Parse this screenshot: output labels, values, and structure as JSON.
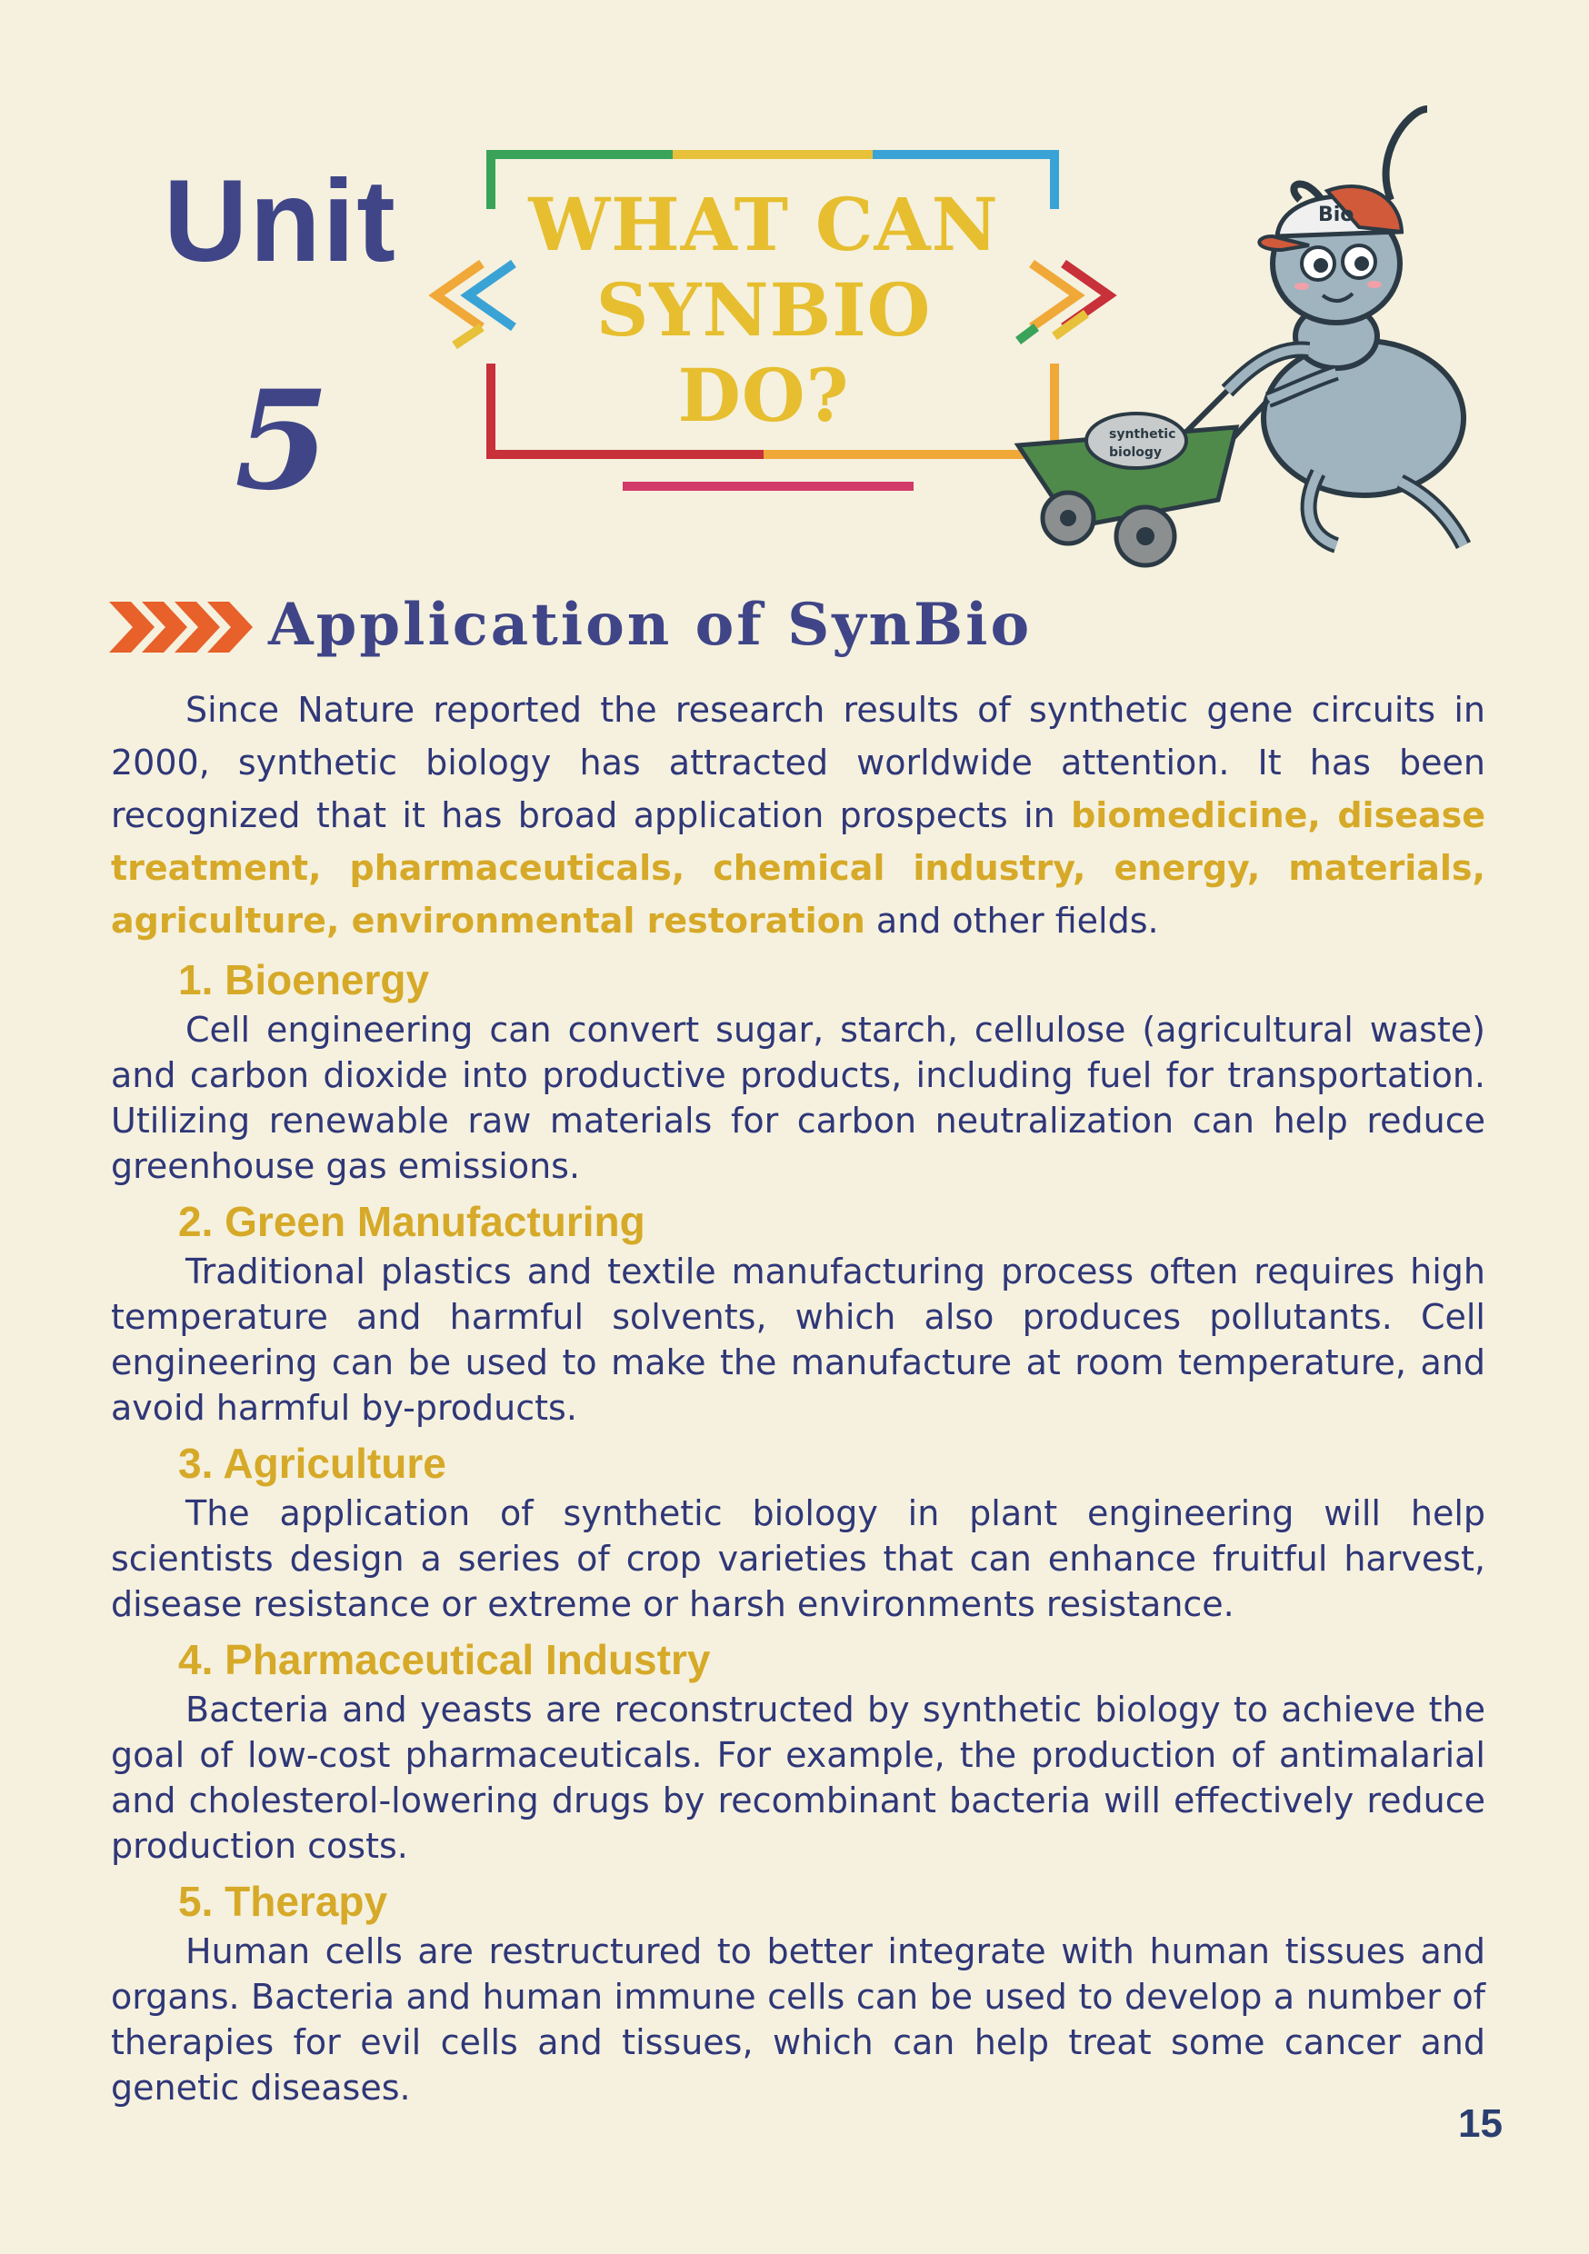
{
  "header": {
    "unit_word": "Unit",
    "unit_number": "5",
    "title_lines": [
      "WHAT CAN",
      "SYNBIO",
      "DO?"
    ],
    "mascot": {
      "cap_text": "Bio",
      "cart_text_1": "synthetic",
      "cart_text_2": "biology"
    }
  },
  "section_title": "Application of SynBio",
  "intro": {
    "text_before": "Since Nature reported the research results of synthetic gene circuits in 2000, synthetic biology has attracted worldwide attention. It has been recognized that it has broad application prospects in ",
    "highlight": "biomedicine, disease treatment, pharmaceuticals, chemical industry, energy, materials, agriculture, environmental restoration",
    "text_after": " and other fields."
  },
  "sections": [
    {
      "heading": "1. Bioenergy",
      "body": "Cell engineering can convert sugar, starch, cellulose (agricultural waste) and carbon dioxide into productive products, including fuel for transportation. Utilizing renewable raw materials for carbon neutralization can help reduce greenhouse gas emissions."
    },
    {
      "heading": "2. Green Manufacturing",
      "body": "Traditional plastics and textile manufacturing process often requires high temperature and harmful solvents, which also produces pollutants. Cell engineering can be used to make the manufacture at room temperature, and avoid harmful by-products."
    },
    {
      "heading": "3. Agriculture",
      "body": "The application of synthetic biology in plant engineering will help scientists design a series of crop varieties that can enhance fruitful harvest, disease resistance or extreme or harsh environments resistance."
    },
    {
      "heading": "4. Pharmaceutical Industry",
      "body": "Bacteria and yeasts are reconstructed by synthetic biology to achieve the goal of low-cost pharmaceuticals. For example, the production of antimalarial and cholesterol-lowering drugs by recombinant bacteria will effectively reduce production costs."
    },
    {
      "heading": "5. Therapy",
      "body": "Human cells are restructured to better integrate with human tissues and organs. Bacteria and human immune cells can be used to develop a number of therapies for evil cells and tissues, which can help treat some cancer and genetic diseases."
    }
  ],
  "page_number": "15",
  "colors": {
    "background": "#f5f1de",
    "navy": "#3f4587",
    "gold": "#d6a928",
    "orange_chevron": "#e8602a"
  }
}
